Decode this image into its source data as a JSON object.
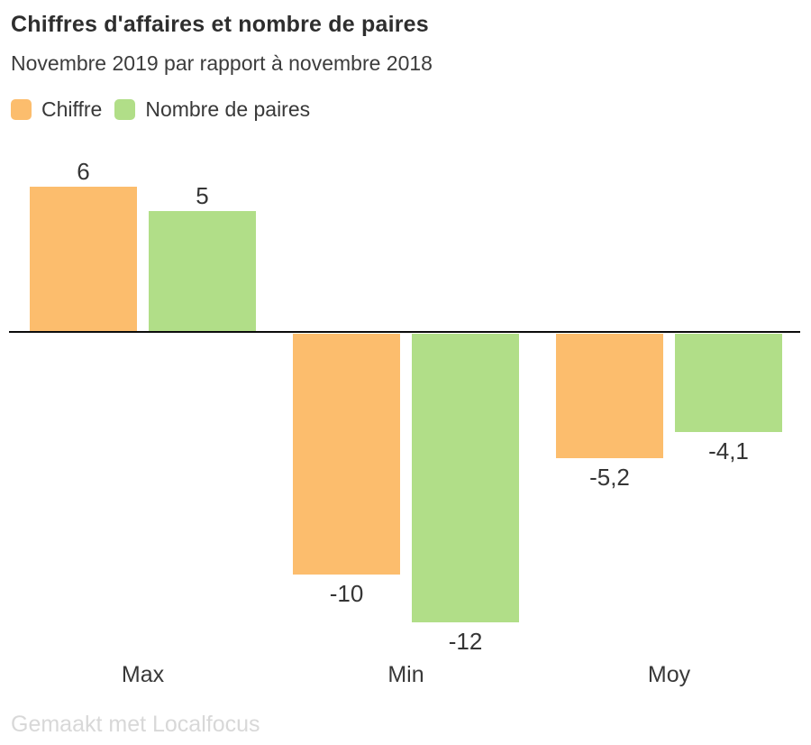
{
  "header": {
    "title": "Chiffres d'affaires et nombre de paires",
    "subtitle": "Novembre 2019 par rapport à novembre 2018"
  },
  "legend": {
    "items": [
      {
        "label": "Chiffre",
        "color": "#fcbd6d"
      },
      {
        "label": "Nombre de paires",
        "color": "#b1de88"
      }
    ]
  },
  "footer": {
    "credit": "Gemaakt met Localfocus"
  },
  "colors": {
    "chiffre": "#fcbd6d",
    "nombre_de_paires": "#b1de88",
    "axis": "#0c0c0c",
    "text": "#383838",
    "credit": "#d8d8d8"
  },
  "chart_data": {
    "type": "bar",
    "title": "Chiffres d'affaires et nombre de paires",
    "subtitle": "Novembre 2019 par rapport à novembre 2018",
    "categories": [
      "Max",
      "Min",
      "Moy"
    ],
    "series": [
      {
        "name": "Chiffre",
        "color": "#fcbd6d",
        "values": [
          6,
          -10,
          -5.2
        ],
        "labels": [
          "6",
          "-10",
          "-5,2"
        ]
      },
      {
        "name": "Nombre de paires",
        "color": "#b1de88",
        "values": [
          5,
          -12,
          -4.1
        ],
        "labels": [
          "5",
          "-12",
          "-4,1"
        ]
      }
    ],
    "xlabel": "",
    "ylabel": "",
    "ylim": [
      -12,
      6
    ],
    "baseline": 0,
    "grid": false,
    "legend_position": "top-left",
    "value_labels": true,
    "credit": "Gemaakt met Localfocus"
  }
}
